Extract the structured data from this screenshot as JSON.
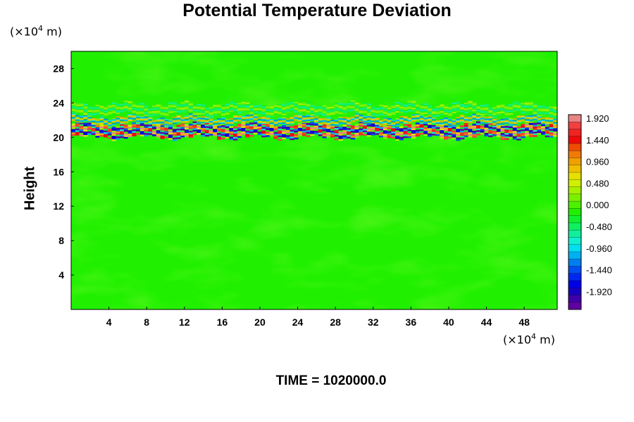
{
  "chart_data": {
    "type": "heatmap",
    "title": "Potential Temperature Deviation",
    "xlabel": "",
    "ylabel": "Height",
    "x_unit": {
      "prefix": "(×10",
      "exponent": "4",
      "suffix": " m)"
    },
    "y_unit": {
      "prefix": "(×10",
      "exponent": "4",
      "suffix": " m)"
    },
    "xlim": [
      0,
      51.5
    ],
    "ylim": [
      0,
      30
    ],
    "x_ticks": [
      4,
      8,
      12,
      16,
      20,
      24,
      28,
      32,
      36,
      40,
      44,
      48
    ],
    "y_ticks": [
      4,
      8,
      12,
      16,
      20,
      24,
      28
    ],
    "x_tick_labels": [
      "4",
      "8",
      "12",
      "16",
      "20",
      "24",
      "28",
      "32",
      "36",
      "40",
      "44",
      "48"
    ],
    "y_tick_labels": [
      "4",
      "8",
      "12",
      "16",
      "20",
      "24",
      "28"
    ],
    "background_value": 0.0,
    "features": [
      {
        "y_center": 20.8,
        "thickness": 1.6,
        "amplitude": 1.9
      },
      {
        "y_center": 22.0,
        "thickness": 0.8,
        "amplitude": 1.1
      },
      {
        "y_center": 23.3,
        "thickness": 1.2,
        "amplitude": -0.4
      }
    ],
    "colorbar": {
      "labels": [
        "1.920",
        "1.440",
        "0.960",
        "0.480",
        "0.000",
        "-0.480",
        "-0.960",
        "-1.440",
        "-1.920"
      ],
      "colors": [
        "#e98484",
        "#f04040",
        "#f02424",
        "#ee0a0a",
        "#ee4c06",
        "#f07a06",
        "#f0a000",
        "#f0c000",
        "#e6e000",
        "#d0f000",
        "#a6f000",
        "#7cf000",
        "#4cf000",
        "#20f000",
        "#10f030",
        "#10f060",
        "#10f09c",
        "#10f0d0",
        "#00e0f0",
        "#00b0f0",
        "#0080f0",
        "#0050f0",
        "#0028f0",
        "#0000e8",
        "#1800c0",
        "#4000a8",
        "#6000a0"
      ]
    }
  },
  "time_label": "TIME = 1020000.0"
}
